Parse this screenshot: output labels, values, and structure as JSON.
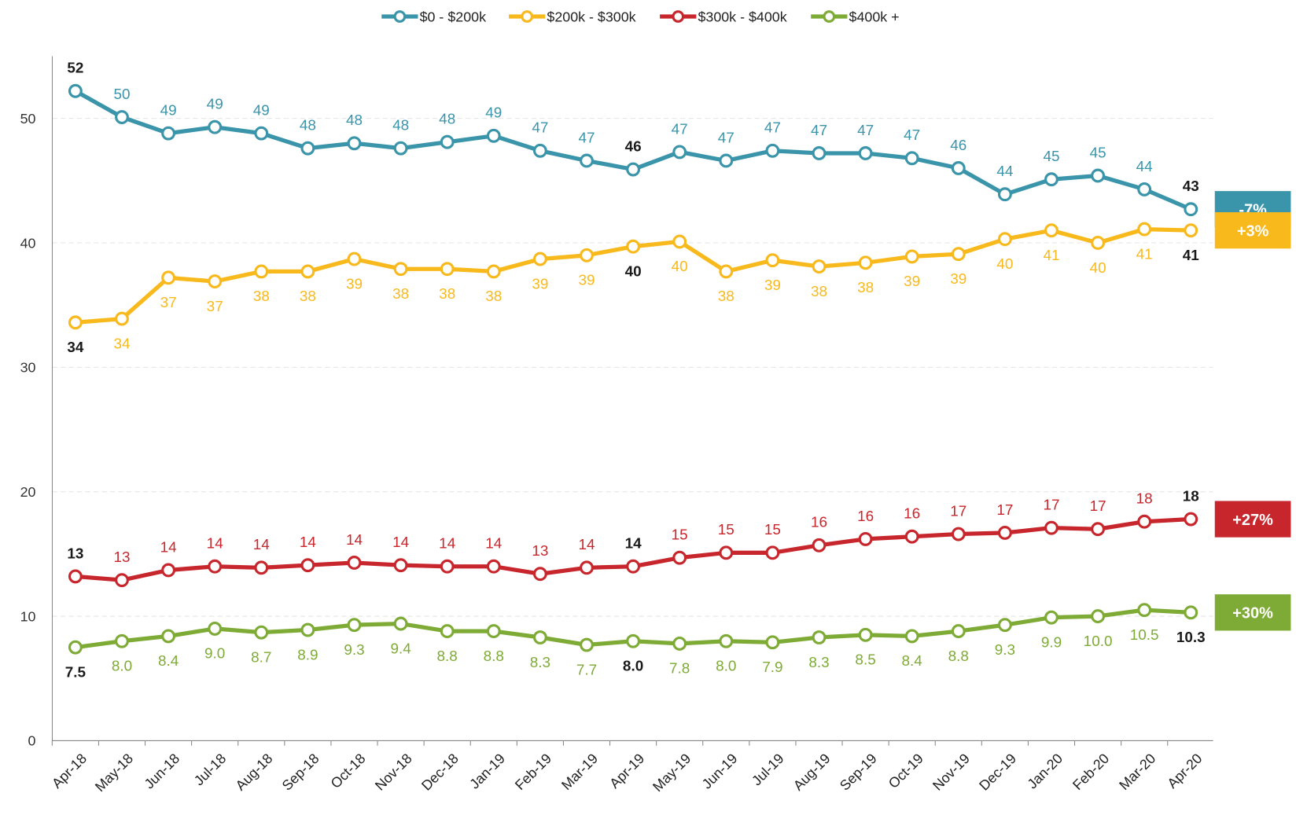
{
  "chart_data": {
    "type": "line",
    "categories": [
      "Apr-18",
      "May-18",
      "Jun-18",
      "Jul-18",
      "Aug-18",
      "Sep-18",
      "Oct-18",
      "Nov-18",
      "Dec-18",
      "Jan-19",
      "Feb-19",
      "Mar-19",
      "Apr-19",
      "May-19",
      "Jun-19",
      "Jul-19",
      "Aug-19",
      "Sep-19",
      "Oct-19",
      "Nov-19",
      "Dec-19",
      "Jan-20",
      "Feb-20",
      "Mar-20",
      "Apr-20"
    ],
    "ylim": [
      0,
      55
    ],
    "yticks": [
      0,
      10,
      20,
      30,
      40,
      50
    ],
    "grid": true,
    "legend": "top",
    "emphasis_indices": [
      0,
      12,
      24
    ],
    "emphasis_color": "#1a1a1a",
    "series": [
      {
        "name": "$0 - $200k",
        "color": "#3a94aa",
        "label_position": "above",
        "change_label": "-7%",
        "values": [
          52.2,
          50.1,
          48.8,
          49.3,
          48.8,
          47.6,
          48.0,
          47.6,
          48.1,
          48.6,
          47.4,
          46.6,
          45.9,
          47.3,
          46.6,
          47.4,
          47.2,
          47.2,
          46.8,
          46.0,
          43.9,
          45.1,
          45.4,
          44.3,
          42.7
        ],
        "value_labels": [
          "52",
          "50",
          "49",
          "49",
          "49",
          "48",
          "48",
          "48",
          "48",
          "49",
          "47",
          "47",
          "46",
          "47",
          "47",
          "47",
          "47",
          "47",
          "47",
          "46",
          "44",
          "45",
          "45",
          "44",
          "43"
        ]
      },
      {
        "name": "$200k - $300k",
        "color": "#f8b91c",
        "label_position": "below",
        "change_label": "+3%",
        "values": [
          33.6,
          33.9,
          37.2,
          36.9,
          37.7,
          37.7,
          38.7,
          37.9,
          37.9,
          37.7,
          38.7,
          39.0,
          39.7,
          40.1,
          37.7,
          38.6,
          38.1,
          38.4,
          38.9,
          39.1,
          40.3,
          41.0,
          40.0,
          41.1,
          41.0
        ],
        "value_labels": [
          "34",
          "34",
          "37",
          "37",
          "38",
          "38",
          "39",
          "38",
          "38",
          "38",
          "39",
          "39",
          "40",
          "40",
          "38",
          "39",
          "38",
          "38",
          "39",
          "39",
          "40",
          "41",
          "40",
          "41",
          "41"
        ]
      },
      {
        "name": "$300k - $400k",
        "color": "#c8262d",
        "label_position": "above",
        "change_label": "+27%",
        "values": [
          13.2,
          12.9,
          13.7,
          14.0,
          13.9,
          14.1,
          14.3,
          14.1,
          14.0,
          14.0,
          13.4,
          13.9,
          14.0,
          14.7,
          15.1,
          15.1,
          15.7,
          16.2,
          16.4,
          16.6,
          16.7,
          17.1,
          17.0,
          17.6,
          17.8
        ],
        "value_labels": [
          "13",
          "13",
          "14",
          "14",
          "14",
          "14",
          "14",
          "14",
          "14",
          "14",
          "13",
          "14",
          "14",
          "15",
          "15",
          "15",
          "16",
          "16",
          "16",
          "17",
          "17",
          "17",
          "17",
          "18",
          "18"
        ]
      },
      {
        "name": "$400k +",
        "color": "#7eab35",
        "label_position": "below",
        "change_label": "+30%",
        "values": [
          7.5,
          8.0,
          8.4,
          9.0,
          8.7,
          8.9,
          9.3,
          9.4,
          8.8,
          8.8,
          8.3,
          7.7,
          8.0,
          7.8,
          8.0,
          7.9,
          8.3,
          8.5,
          8.4,
          8.8,
          9.3,
          9.9,
          10.0,
          10.5,
          10.3
        ],
        "value_labels": [
          "7.5",
          "8.0",
          "8.4",
          "9.0",
          "8.7",
          "8.9",
          "9.3",
          "9.4",
          "8.8",
          "8.8",
          "8.3",
          "7.7",
          "8.0",
          "7.8",
          "8.0",
          "7.9",
          "8.3",
          "8.5",
          "8.4",
          "8.8",
          "9.3",
          "9.9",
          "10.0",
          "10.5",
          "10.3"
        ]
      }
    ]
  }
}
